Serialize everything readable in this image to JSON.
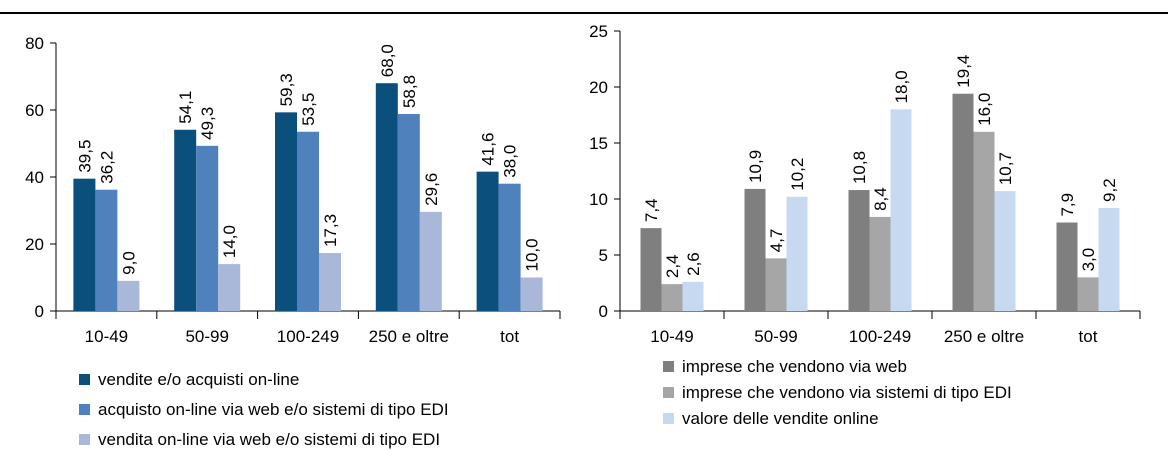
{
  "chart_data": [
    {
      "type": "bar",
      "categories": [
        "10-49",
        "50-99",
        "100-249",
        "250 e oltre",
        "tot"
      ],
      "ylim": [
        0,
        80
      ],
      "yticks": [
        "0",
        "20",
        "40",
        "60",
        "80"
      ],
      "grid": false,
      "legend_position": "bottom",
      "series": [
        {
          "name": "vendite e/o acquisti on-line",
          "color": "#0b4f7c",
          "values": [
            39.5,
            54.1,
            59.3,
            68.0,
            41.6
          ],
          "labels": [
            "39,5",
            "54,1",
            "59,3",
            "68,0",
            "41,6"
          ]
        },
        {
          "name": "acquisto on-line via web e/o sistemi di tipo EDI",
          "color": "#4f81bd",
          "values": [
            36.2,
            49.3,
            53.5,
            58.8,
            38.0
          ],
          "labels": [
            "36,2",
            "49,3",
            "53,5",
            "58,8",
            "38,0"
          ]
        },
        {
          "name": "vendita on-line via web e/o sistemi di tipo EDI",
          "color": "#a9b8d9",
          "values": [
            9.0,
            14.0,
            17.3,
            29.6,
            10.0
          ],
          "labels": [
            "9,0",
            "14,0",
            "17,3",
            "29,6",
            "10,0"
          ]
        }
      ]
    },
    {
      "type": "bar",
      "categories": [
        "10-49",
        "50-99",
        "100-249",
        "250 e oltre",
        "tot"
      ],
      "ylim": [
        0,
        25
      ],
      "yticks": [
        "0",
        "5",
        "10",
        "15",
        "20",
        "25"
      ],
      "grid": false,
      "legend_position": "bottom",
      "series": [
        {
          "name": "imprese che vendono via web",
          "color": "#7f7f7f",
          "values": [
            7.4,
            10.9,
            10.8,
            19.4,
            7.9
          ],
          "labels": [
            "7,4",
            "10,9",
            "10,8",
            "19,4",
            "7,9"
          ]
        },
        {
          "name": "imprese che vendono via sistemi di tipo EDI",
          "color": "#a6a6a6",
          "values": [
            2.4,
            4.7,
            8.4,
            16.0,
            3.0
          ],
          "labels": [
            "2,4",
            "4,7",
            "8,4",
            "16,0",
            "3,0"
          ]
        },
        {
          "name": "valore delle vendite online",
          "color": "#c6d9f1",
          "values": [
            2.6,
            10.2,
            18.0,
            10.7,
            9.2
          ],
          "labels": [
            "2,6",
            "10,2",
            "18,0",
            "10,7",
            "9,2"
          ]
        }
      ]
    }
  ]
}
